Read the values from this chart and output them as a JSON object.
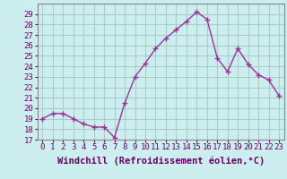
{
  "x": [
    0,
    1,
    2,
    3,
    4,
    5,
    6,
    7,
    8,
    9,
    10,
    11,
    12,
    13,
    14,
    15,
    16,
    17,
    18,
    19,
    20,
    21,
    22,
    23
  ],
  "y": [
    19,
    19.5,
    19.5,
    19,
    18.5,
    18.2,
    18.2,
    17.2,
    20.5,
    23,
    24.3,
    25.7,
    26.7,
    27.5,
    28.3,
    29.2,
    28.5,
    24.8,
    23.5,
    25.7,
    24.2,
    23.2,
    22.7,
    21.2
  ],
  "line_color": "#993399",
  "marker": "+",
  "bg_color": "#cceeee",
  "grid_color": "#aacccc",
  "xlabel": "Windchill (Refroidissement éolien,°C)",
  "ylim": [
    17,
    30
  ],
  "xlim": [
    -0.5,
    23.5
  ],
  "yticks": [
    17,
    18,
    19,
    20,
    21,
    22,
    23,
    24,
    25,
    26,
    27,
    28,
    29
  ],
  "xticks": [
    0,
    1,
    2,
    3,
    4,
    5,
    6,
    7,
    8,
    9,
    10,
    11,
    12,
    13,
    14,
    15,
    16,
    17,
    18,
    19,
    20,
    21,
    22,
    23
  ],
  "xlabel_fontsize": 7.5,
  "tick_fontsize": 6.5,
  "line_width": 1.0,
  "marker_size": 4
}
